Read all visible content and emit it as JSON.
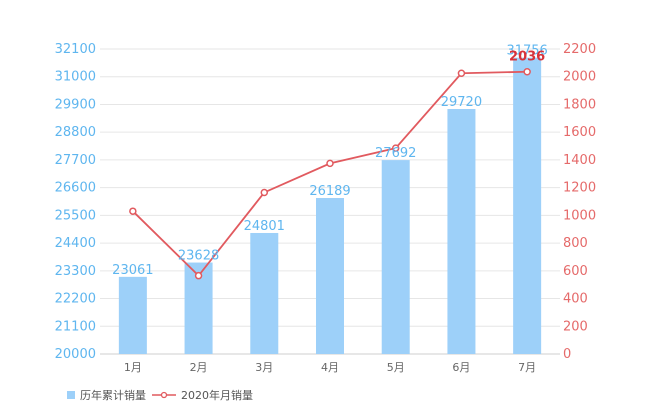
{
  "chart_data": {
    "type": "bar",
    "categories": [
      "1月",
      "2月",
      "3月",
      "4月",
      "5月",
      "6月",
      "7月"
    ],
    "series": [
      {
        "name": "历年累计销量",
        "type": "bar",
        "axis": "left",
        "values": [
          23061,
          23628,
          24801,
          26189,
          27692,
          29720,
          31756
        ],
        "data_labels": [
          "23061",
          "23628",
          "24801",
          "26189",
          "27692",
          "29720",
          "31756"
        ]
      },
      {
        "name": "2020年月销量",
        "type": "line",
        "axis": "right",
        "values": [
          1030,
          565,
          1165,
          1375,
          1485,
          2025,
          2036
        ],
        "highlight_label": "2036"
      }
    ],
    "y_left": {
      "range": [
        20000,
        32100
      ],
      "ticks": [
        "20000",
        "21100",
        "22200",
        "23300",
        "24400",
        "25500",
        "26600",
        "27700",
        "28800",
        "29900",
        "31000",
        "32100"
      ]
    },
    "y_right": {
      "range": [
        0,
        2200
      ],
      "ticks": [
        "0",
        "200",
        "400",
        "600",
        "800",
        "1000",
        "1200",
        "1400",
        "1600",
        "1800",
        "2000",
        "2200"
      ]
    },
    "grid": true,
    "legend_position": "bottom-left",
    "colors": {
      "bar": "#9dd0f9",
      "line": "#e15a5f",
      "left_ticks": "#5fb6ef",
      "right_ticks": "#e56a6a",
      "highlight": "#d8333b"
    }
  }
}
